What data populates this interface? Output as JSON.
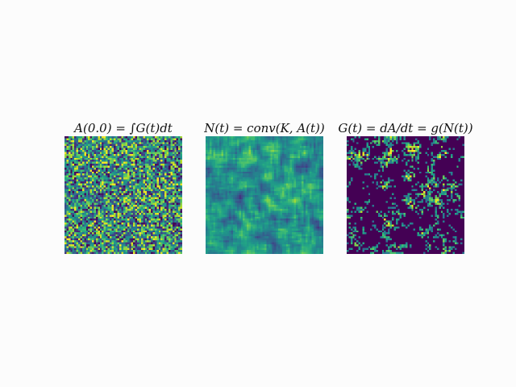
{
  "chart_data": [
    {
      "type": "heatmap",
      "title": "A(0.0) = ∫G(t)dt",
      "colormap": "viridis",
      "texture": "fine uniform noise",
      "grid": false,
      "axes": "off"
    },
    {
      "type": "heatmap",
      "title": "N(t) = conv(K, A(t))",
      "colormap": "viridis",
      "texture": "smoothed noise, mostly mid-range teal/green",
      "grid": false,
      "axes": "off"
    },
    {
      "type": "heatmap",
      "title": "G(t) = dA/dt = g(N(t))",
      "colormap": "viridis",
      "texture": "sparse bright speckles on dark purple",
      "grid": false,
      "axes": "off"
    }
  ]
}
